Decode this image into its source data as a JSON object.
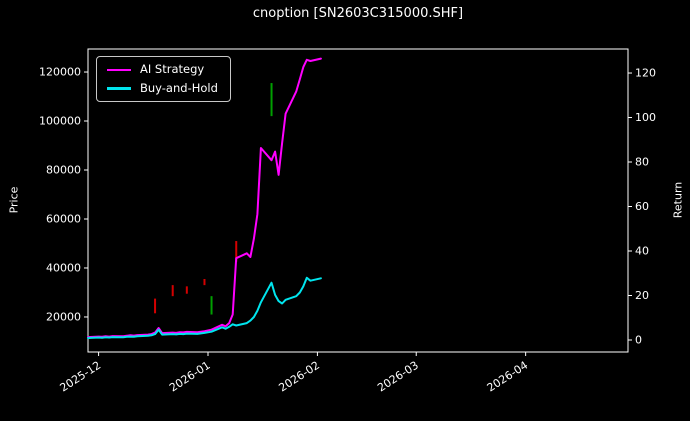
{
  "chart_data": {
    "type": "line",
    "title": "cnoption [SN2603C315000.SHF]",
    "background": "#000000",
    "grid": false,
    "legend": {
      "position": "upper-left"
    },
    "x": [
      "2025-11-28",
      "2025-12-01",
      "2025-12-02",
      "2025-12-03",
      "2025-12-04",
      "2025-12-05",
      "2025-12-08",
      "2025-12-09",
      "2025-12-10",
      "2025-12-11",
      "2025-12-12",
      "2025-12-15",
      "2025-12-16",
      "2025-12-17",
      "2025-12-18",
      "2025-12-19",
      "2025-12-22",
      "2025-12-23",
      "2025-12-24",
      "2025-12-25",
      "2025-12-26",
      "2025-12-29",
      "2025-12-30",
      "2025-12-31",
      "2026-01-02",
      "2026-01-05",
      "2026-01-06",
      "2026-01-07",
      "2026-01-08",
      "2026-01-09",
      "2026-01-12",
      "2026-01-13",
      "2026-01-14",
      "2026-01-15",
      "2026-01-16",
      "2026-01-19",
      "2026-01-20",
      "2026-01-21",
      "2026-01-22",
      "2026-01-23",
      "2026-01-26",
      "2026-01-27",
      "2026-01-28",
      "2026-01-29",
      "2026-01-30",
      "2026-02-02"
    ],
    "series": [
      {
        "name": "AI Strategy",
        "color": "#ff00ff",
        "axis": "left",
        "values": [
          11800,
          12000,
          11900,
          12100,
          12000,
          12200,
          12100,
          12300,
          12500,
          12400,
          12600,
          12800,
          13000,
          13600,
          15500,
          13400,
          13600,
          13500,
          13800,
          13700,
          13900,
          13800,
          14000,
          14200,
          14800,
          16800,
          16200,
          17500,
          21000,
          44000,
          46000,
          44500,
          52000,
          62000,
          89000,
          84000,
          87500,
          78000,
          91000,
          103000,
          112000,
          117000,
          122000,
          125000,
          124500,
          125500
        ]
      },
      {
        "name": "Buy-and-Hold",
        "color": "#00e5ee",
        "axis": "left",
        "values": [
          11400,
          11600,
          11500,
          11700,
          11600,
          11800,
          11700,
          11900,
          12000,
          11900,
          12100,
          12300,
          12500,
          13000,
          14800,
          12800,
          13000,
          12900,
          13100,
          13000,
          13200,
          13100,
          13300,
          13500,
          14000,
          15800,
          15200,
          16000,
          17000,
          16500,
          17500,
          18500,
          20000,
          22500,
          26000,
          34000,
          29000,
          26500,
          25500,
          27000,
          28500,
          30000,
          32500,
          36000,
          34800,
          35800
        ]
      }
    ],
    "signals": {
      "buy_color": "#00a000",
      "sell_color": "#d40000",
      "buy": [
        {
          "date": "2026-01-02",
          "price_from": 21000,
          "price_to": 28500
        },
        {
          "date": "2026-01-19",
          "price_from": 102000,
          "price_to": 115500
        }
      ],
      "sell": [
        {
          "date": "2025-12-17",
          "price_from": 21500,
          "price_to": 27500
        },
        {
          "date": "2025-12-22",
          "price_from": 28500,
          "price_to": 33000
        },
        {
          "date": "2025-12-26",
          "price_from": 29500,
          "price_to": 32500
        },
        {
          "date": "2025-12-31",
          "price_from": 33000,
          "price_to": 35500
        },
        {
          "date": "2026-01-09",
          "price_from": 42500,
          "price_to": 51000
        }
      ]
    },
    "left_axis": {
      "label": "Price",
      "ticks": [
        20000,
        40000,
        60000,
        80000,
        100000,
        120000
      ],
      "lim": [
        5700,
        129400
      ]
    },
    "right_axis": {
      "label": "Return",
      "ticks": [
        0,
        20,
        40,
        60,
        80,
        100,
        120
      ],
      "lim": [
        -5.4,
        130.8
      ]
    },
    "x_axis": {
      "ticks": [
        "2025-12",
        "2026-01",
        "2026-02",
        "2026-03",
        "2026-04"
      ],
      "lim": [
        "2025-11-28",
        "2026-04-30"
      ]
    }
  }
}
